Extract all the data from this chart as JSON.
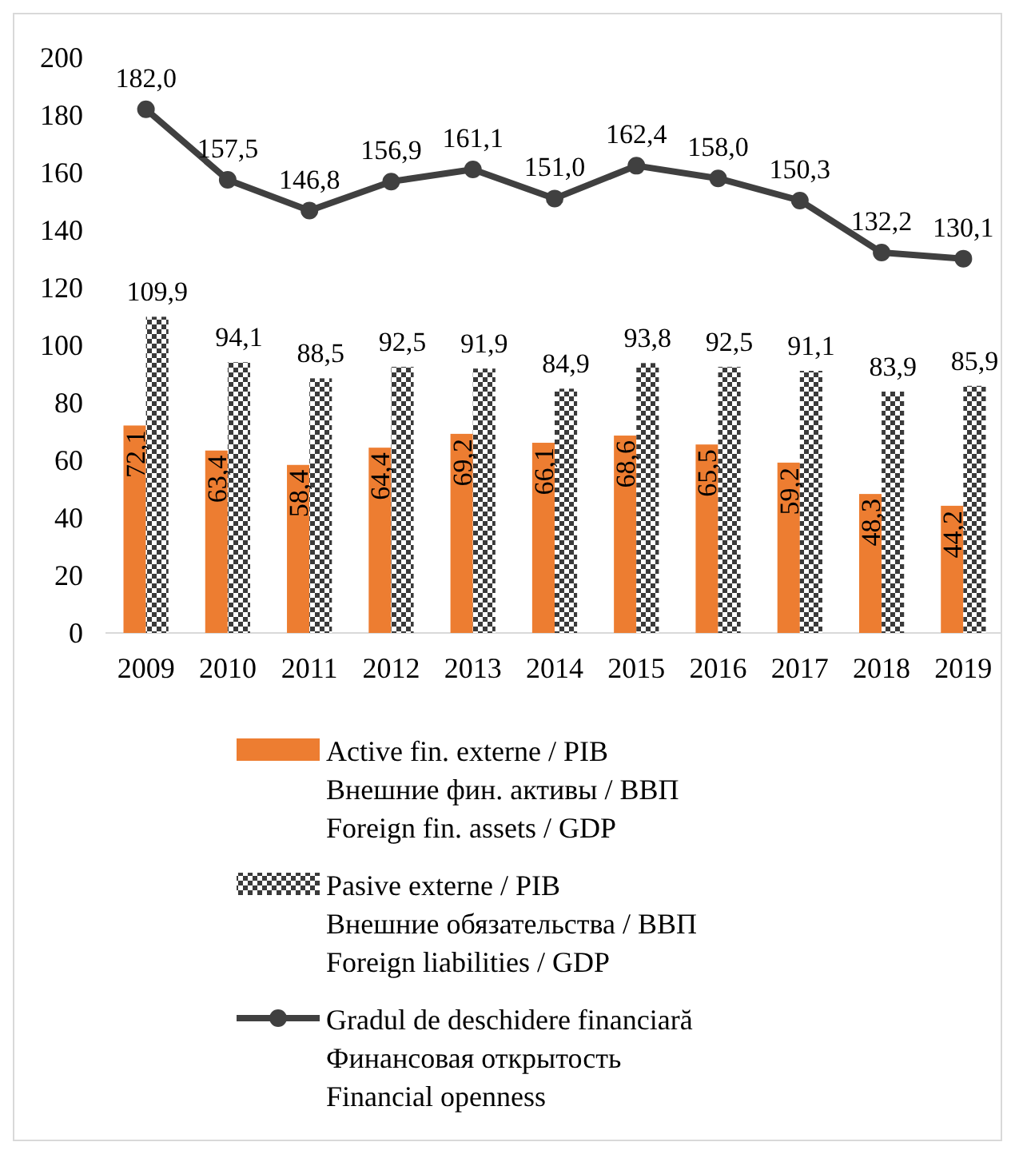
{
  "chart_data": {
    "type": "bar",
    "categories": [
      "2009",
      "2010",
      "2011",
      "2012",
      "2013",
      "2014",
      "2015",
      "2016",
      "2017",
      "2018",
      "2019"
    ],
    "series": [
      {
        "name": "Active fin. externe / PIB\nВнешние фин. активы / ВВП\nForeign fin. assets / GDP",
        "color": "#ed7d31",
        "values": [
          72.1,
          63.4,
          58.4,
          64.4,
          69.2,
          66.1,
          68.6,
          65.5,
          59.2,
          48.3,
          44.2
        ],
        "value_labels": [
          "72,1",
          "63,4",
          "58,4",
          "64,4",
          "69,2",
          "66,1",
          "68,6",
          "65,5",
          "59,2",
          "48,3",
          "44,2"
        ]
      },
      {
        "name": "Pasive externe / PIB\nВнешние обязательства / ВВП\nForeign liabilities / GDP",
        "color": "#3a3a3a",
        "values": [
          109.9,
          94.1,
          88.5,
          92.5,
          91.9,
          84.9,
          93.8,
          92.5,
          91.1,
          83.9,
          85.9
        ],
        "value_labels": [
          "109,9",
          "94,1",
          "88,5",
          "92,5",
          "91,9",
          "84,9",
          "93,8",
          "92,5",
          "91,1",
          "83,9",
          "85,9"
        ]
      },
      {
        "name": "Gradul de deschidere financiară\nФинансовая открытость\nFinancial openness",
        "type": "line",
        "color": "#404040",
        "marker": "circle",
        "values": [
          182.0,
          157.5,
          146.8,
          156.9,
          161.1,
          151.0,
          162.4,
          158.0,
          150.3,
          132.2,
          130.1
        ],
        "value_labels": [
          "182,0",
          "157,5",
          "146,8",
          "156,9",
          "161,1",
          "151,0",
          "162,4",
          "158,0",
          "150,3",
          "132,2",
          "130,1"
        ]
      }
    ],
    "ylim": [
      0,
      200
    ],
    "yticks": [
      0,
      20,
      40,
      60,
      80,
      100,
      120,
      140,
      160,
      180,
      200
    ],
    "grid": false,
    "legend": "bottom"
  }
}
